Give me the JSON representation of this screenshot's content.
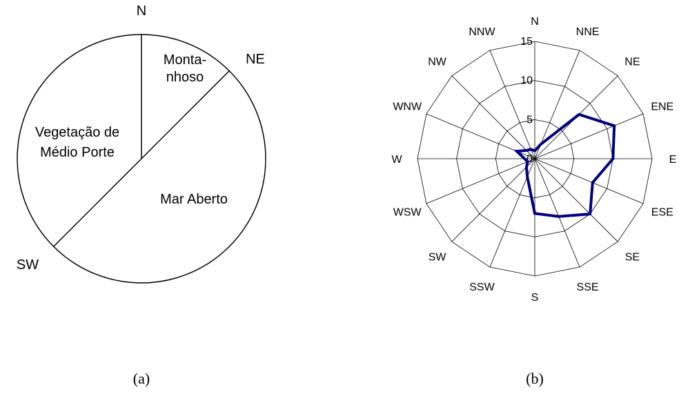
{
  "panel_a": {
    "caption": "(a)",
    "directions": [
      "N",
      "NE",
      "SW"
    ],
    "regions": [
      {
        "lines": [
          "Monta-",
          "nhoso"
        ]
      },
      {
        "lines": [
          "Vegetação de",
          "Médio Porte"
        ]
      },
      {
        "lines": [
          "Mar Aberto"
        ]
      }
    ]
  },
  "panel_b": {
    "caption": "(b)"
  },
  "chart_data": [
    {
      "type": "pie",
      "boundary_bearings_deg": [
        0,
        45,
        225
      ],
      "boundary_labels": [
        "N",
        "NE",
        "SW"
      ],
      "sectors": [
        {
          "label": "Monta- nhoso",
          "from": "N",
          "to": "NE",
          "degrees": 45
        },
        {
          "label": "Mar Aberto",
          "from": "NE",
          "to": "SW",
          "degrees": 180
        },
        {
          "label": "Vegetação de Médio Porte",
          "from": "SW",
          "to": "N",
          "degrees": 135
        }
      ]
    },
    {
      "type": "radar",
      "categories": [
        "N",
        "NNE",
        "NE",
        "ENE",
        "E",
        "ESE",
        "SE",
        "SSE",
        "S",
        "SSW",
        "SW",
        "WSW",
        "W",
        "WNW",
        "NW",
        "NNW"
      ],
      "rlim": [
        0,
        15
      ],
      "ticks": [
        0,
        5,
        10,
        15
      ],
      "series": [
        {
          "values": [
            1,
            2,
            8,
            11,
            10,
            8,
            10,
            8,
            7,
            2.5,
            1.5,
            1,
            1.3,
            2.5,
            1.5,
            1.3
          ],
          "color": "#000080"
        }
      ],
      "grid": true,
      "legend": "none"
    }
  ]
}
